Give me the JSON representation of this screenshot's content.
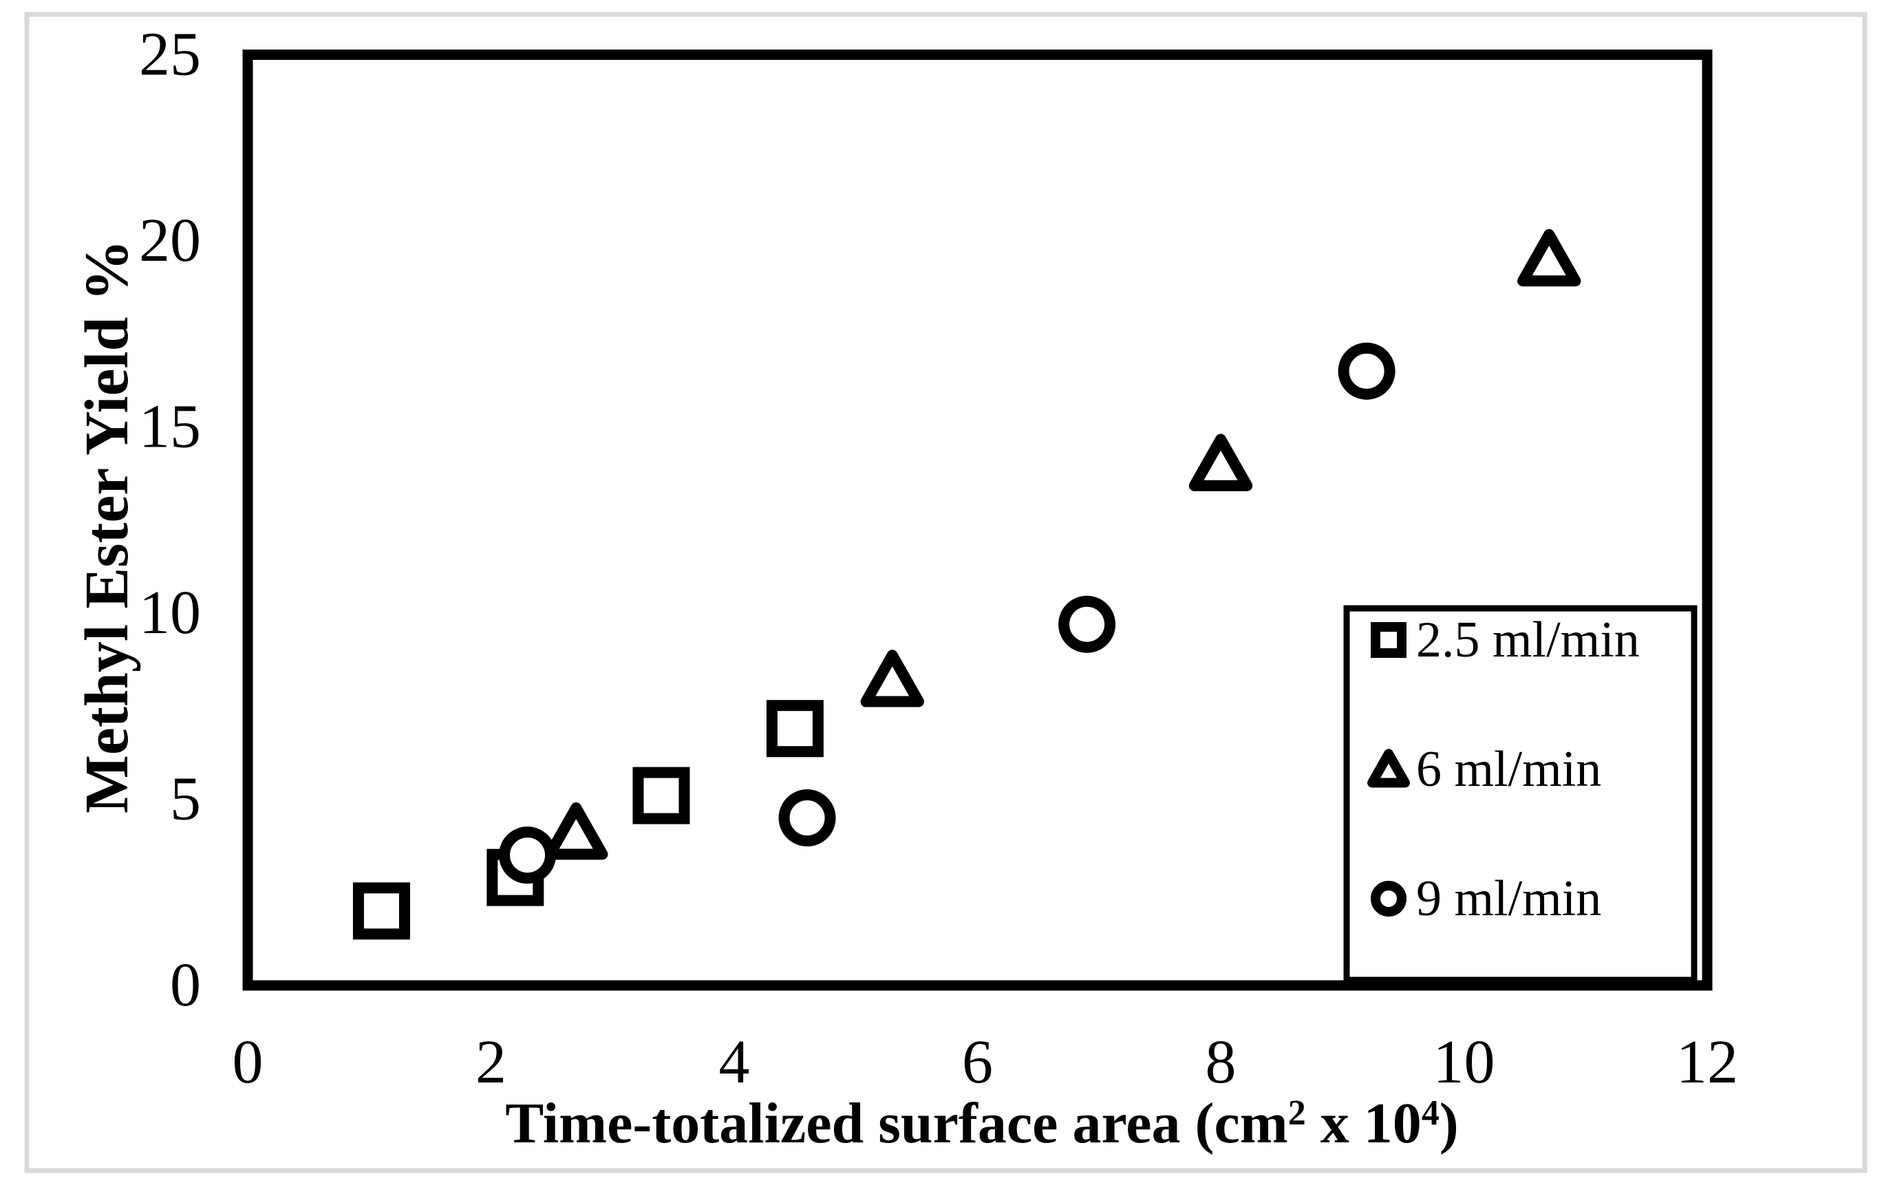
{
  "figure": {
    "background_color": "#ffffff",
    "frame_color": "#d9d9d9",
    "ink_color": "#000000"
  },
  "chart_data": {
    "type": "scatter",
    "title": "",
    "xlabel": "Time-totalized surface area (cm² x 10⁴)",
    "ylabel": "Methyl Ester Yield %",
    "xlim": [
      0,
      12
    ],
    "ylim": [
      0,
      25
    ],
    "x_ticks": [
      0,
      2,
      4,
      6,
      8,
      10,
      12
    ],
    "y_ticks": [
      0,
      5,
      10,
      15,
      20,
      25
    ],
    "grid": false,
    "legend_position": "inside-lower-right",
    "marker_stroke_color": "#000000",
    "marker_fill_color": "#ffffff",
    "series": [
      {
        "name": "2.5 ml/min",
        "marker": "square",
        "points": [
          [
            1.1,
            2.0
          ],
          [
            2.2,
            2.9
          ],
          [
            3.4,
            5.1
          ],
          [
            4.5,
            6.9
          ]
        ]
      },
      {
        "name": "6 ml/min",
        "marker": "triangle",
        "points": [
          [
            2.7,
            4.1
          ],
          [
            5.3,
            8.2
          ],
          [
            8.0,
            14.0
          ],
          [
            10.7,
            19.5
          ]
        ]
      },
      {
        "name": "9 ml/min",
        "marker": "circle",
        "points": [
          [
            2.3,
            3.5
          ],
          [
            4.6,
            4.5
          ],
          [
            6.9,
            9.7
          ],
          [
            9.2,
            16.5
          ]
        ]
      }
    ]
  }
}
